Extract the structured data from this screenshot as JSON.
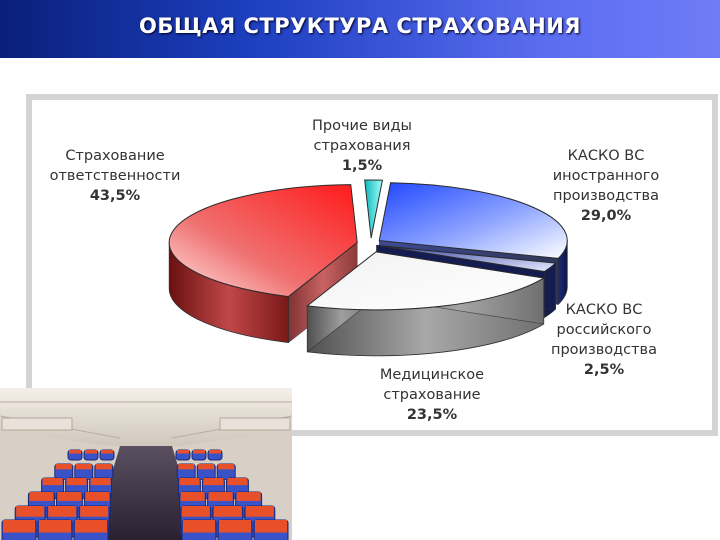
{
  "header": {
    "title": "ОБЩАЯ СТРУКТУРА СТРАХОВАНИЯ"
  },
  "chart_data": {
    "type": "pie",
    "title": "",
    "slices": [
      {
        "label_lines": [
          "КАСКО ВС",
          "иностранного",
          "производства"
        ],
        "value": 29.0,
        "value_label": "29,0%",
        "color": "#3a5ef0"
      },
      {
        "label_lines": [
          "КАСКО ВС",
          "российского",
          "производства"
        ],
        "value": 2.5,
        "value_label": "2,5%",
        "color": "#1a2a66"
      },
      {
        "label_lines": [
          "Медицинское",
          "страхование"
        ],
        "value": 23.5,
        "value_label": "23,5%",
        "color": "#e8e8e8"
      },
      {
        "label_lines": [
          "Страхование",
          "ответственности"
        ],
        "value": 43.5,
        "value_label": "43,5%",
        "color": "#e82020"
      },
      {
        "label_lines": [
          "Прочие виды",
          "страхования"
        ],
        "value": 1.5,
        "value_label": "1,5%",
        "color": "#40d0d0"
      }
    ],
    "style": "3d-exploded"
  },
  "photo": {
    "icon": "airplane-cabin-photo"
  }
}
